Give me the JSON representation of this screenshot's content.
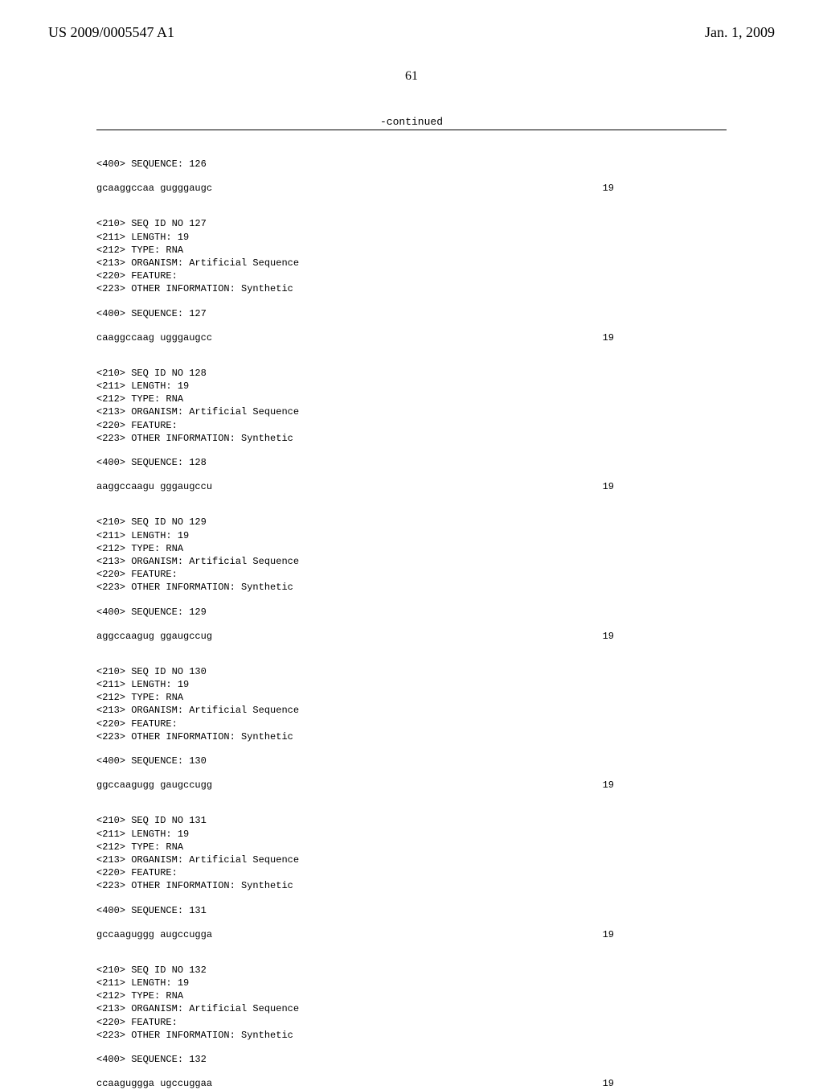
{
  "header": {
    "publication_number": "US 2009/0005547 A1",
    "publication_date": "Jan. 1, 2009"
  },
  "page_number": "61",
  "continued_label": "-continued",
  "sequences": [
    {
      "pre_lines": [
        "<400> SEQUENCE: 126"
      ],
      "data": "gcaaggccaa gugggaugc",
      "length": "19"
    },
    {
      "header_lines": [
        "<210> SEQ ID NO 127",
        "<211> LENGTH: 19",
        "<212> TYPE: RNA",
        "<213> ORGANISM: Artificial Sequence",
        "<220> FEATURE:",
        "<223> OTHER INFORMATION: Synthetic"
      ],
      "sequence_label": "<400> SEQUENCE: 127",
      "data": "caaggccaag ugggaugcc",
      "length": "19"
    },
    {
      "header_lines": [
        "<210> SEQ ID NO 128",
        "<211> LENGTH: 19",
        "<212> TYPE: RNA",
        "<213> ORGANISM: Artificial Sequence",
        "<220> FEATURE:",
        "<223> OTHER INFORMATION: Synthetic"
      ],
      "sequence_label": "<400> SEQUENCE: 128",
      "data": "aaggccaagu gggaugccu",
      "length": "19"
    },
    {
      "header_lines": [
        "<210> SEQ ID NO 129",
        "<211> LENGTH: 19",
        "<212> TYPE: RNA",
        "<213> ORGANISM: Artificial Sequence",
        "<220> FEATURE:",
        "<223> OTHER INFORMATION: Synthetic"
      ],
      "sequence_label": "<400> SEQUENCE: 129",
      "data": "aggccaagug ggaugccug",
      "length": "19"
    },
    {
      "header_lines": [
        "<210> SEQ ID NO 130",
        "<211> LENGTH: 19",
        "<212> TYPE: RNA",
        "<213> ORGANISM: Artificial Sequence",
        "<220> FEATURE:",
        "<223> OTHER INFORMATION: Synthetic"
      ],
      "sequence_label": "<400> SEQUENCE: 130",
      "data": "ggccaagugg gaugccugg",
      "length": "19"
    },
    {
      "header_lines": [
        "<210> SEQ ID NO 131",
        "<211> LENGTH: 19",
        "<212> TYPE: RNA",
        "<213> ORGANISM: Artificial Sequence",
        "<220> FEATURE:",
        "<223> OTHER INFORMATION: Synthetic"
      ],
      "sequence_label": "<400> SEQUENCE: 131",
      "data": "gccaaguggg augccugga",
      "length": "19"
    },
    {
      "header_lines": [
        "<210> SEQ ID NO 132",
        "<211> LENGTH: 19",
        "<212> TYPE: RNA",
        "<213> ORGANISM: Artificial Sequence",
        "<220> FEATURE:",
        "<223> OTHER INFORMATION: Synthetic"
      ],
      "sequence_label": "<400> SEQUENCE: 132",
      "data": "ccaaguggga ugccuggaa",
      "length": "19"
    }
  ]
}
